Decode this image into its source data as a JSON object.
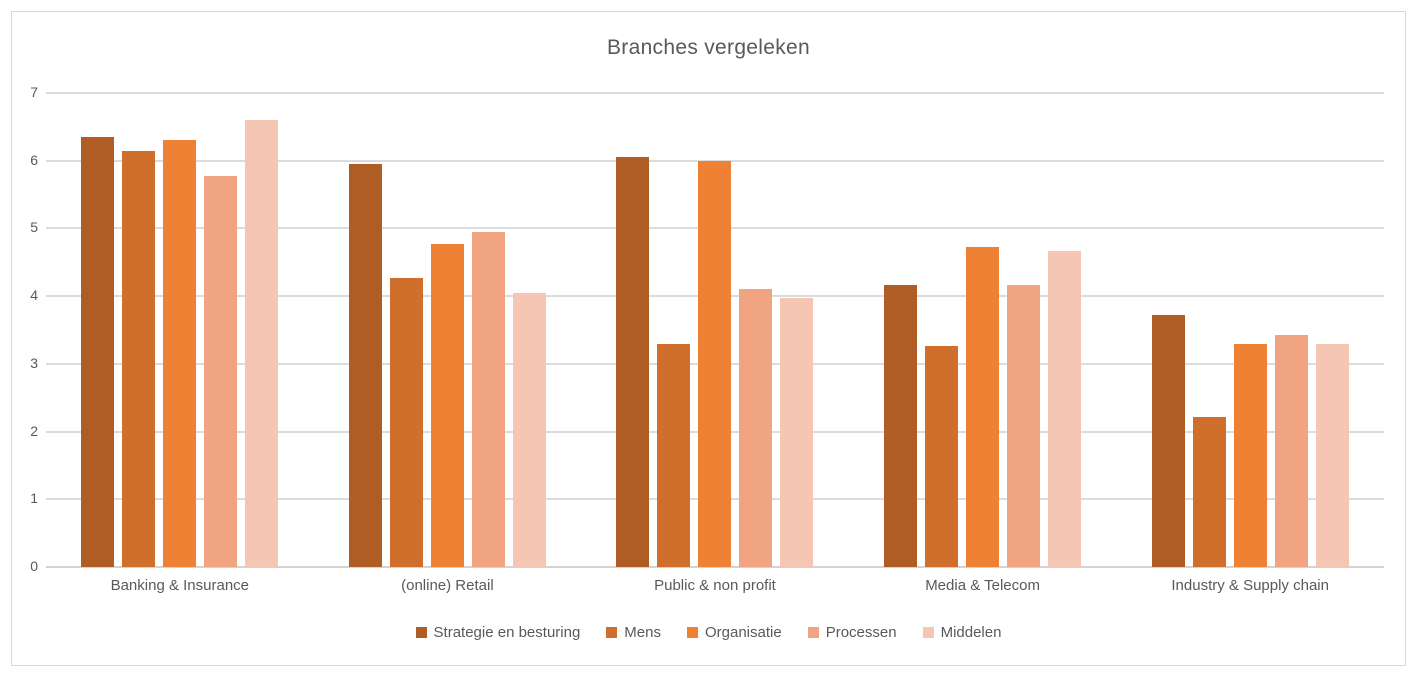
{
  "chart_data": {
    "type": "bar",
    "title": "Branches vergeleken",
    "categories": [
      "Banking & Insurance",
      "(online) Retail",
      "Public & non profit",
      "Media & Telecom",
      "Industry & Supply chain"
    ],
    "series": [
      {
        "name": "Strategie en besturing",
        "color": "#B05C25",
        "values": [
          6.35,
          5.95,
          6.05,
          4.16,
          3.72
        ]
      },
      {
        "name": "Mens",
        "color": "#D06F2C",
        "values": [
          6.15,
          4.27,
          3.3,
          3.26,
          2.21
        ]
      },
      {
        "name": "Organisatie",
        "color": "#EE8133",
        "values": [
          6.3,
          4.77,
          6.0,
          4.72,
          3.29
        ]
      },
      {
        "name": "Processen",
        "color": "#F1A482",
        "values": [
          5.78,
          4.95,
          4.11,
          4.16,
          3.43
        ]
      },
      {
        "name": "Middelen",
        "color": "#F6C6B4",
        "values": [
          6.6,
          4.05,
          3.97,
          4.67,
          3.29
        ]
      }
    ],
    "xlabel": "",
    "ylabel": "",
    "ylim": [
      0,
      7
    ],
    "yticks": [
      0,
      1,
      2,
      3,
      4,
      5,
      6,
      7
    ],
    "grid": true,
    "legend_position": "bottom"
  },
  "style": {
    "text_color": "#595959",
    "gridline_color": "#DCDCDC",
    "border_color": "#D9D9D9",
    "background_color": "#FFFFFF"
  }
}
